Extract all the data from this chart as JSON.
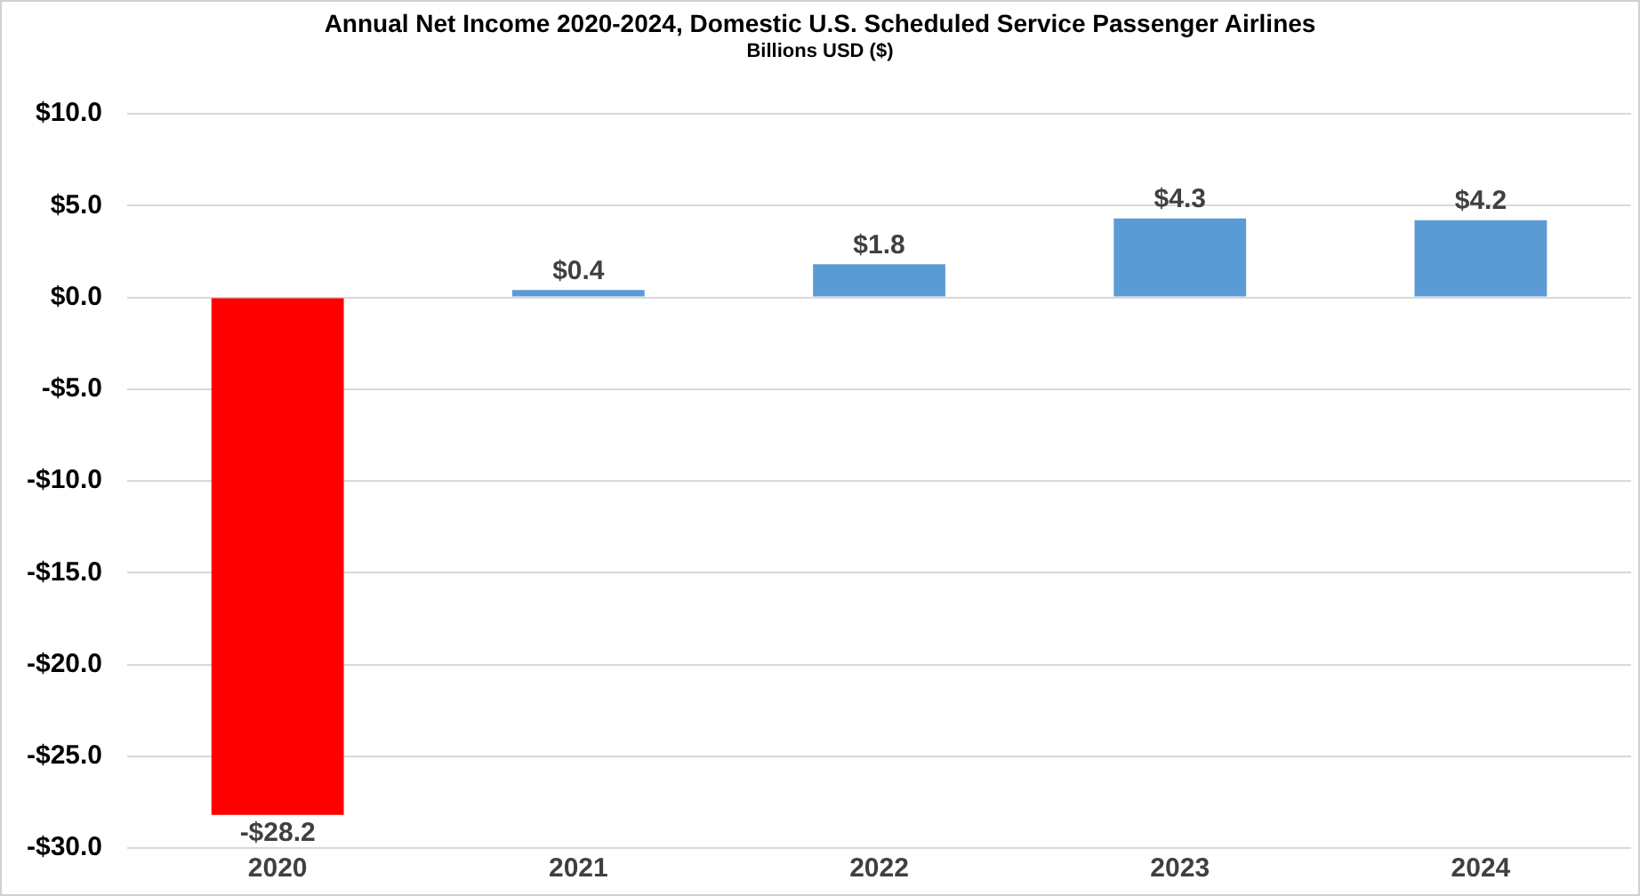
{
  "chart_data": {
    "type": "bar",
    "title": "Annual Net Income 2020-2024, Domestic U.S. Scheduled Service Passenger Airlines",
    "subtitle": "Billions USD ($)",
    "categories": [
      "2020",
      "2021",
      "2022",
      "2023",
      "2024"
    ],
    "values": [
      -28.2,
      0.4,
      1.8,
      4.3,
      4.2
    ],
    "colors": [
      "#ff0000",
      "#5b9bd5",
      "#5b9bd5",
      "#5b9bd5",
      "#5b9bd5"
    ],
    "value_labels": [
      "-$28.2",
      "$0.4",
      "$1.8",
      "$4.3",
      "$4.2"
    ],
    "ylim": [
      -30,
      10
    ],
    "yticks": [
      {
        "value": -30,
        "label": "-$30.0"
      },
      {
        "value": -25,
        "label": "-$25.0"
      },
      {
        "value": -20,
        "label": "-$20.0"
      },
      {
        "value": -15,
        "label": "-$15.0"
      },
      {
        "value": -10,
        "label": "-$10.0"
      },
      {
        "value": -5,
        "label": "-$5.0"
      },
      {
        "value": 0,
        "label": "$0.0"
      },
      {
        "value": 5,
        "label": "$5.0"
      },
      {
        "value": 10,
        "label": "$10.0"
      }
    ],
    "grid": "y"
  }
}
